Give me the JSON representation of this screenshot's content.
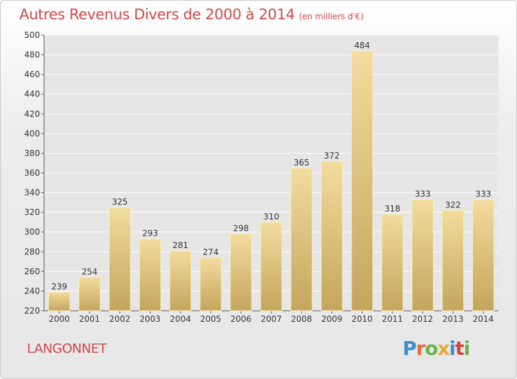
{
  "header": {
    "title": "Autres Revenus Divers de 2000 à 2014",
    "subtitle": "(en milliers d'€)"
  },
  "footer": {
    "commune": "LANGONNET",
    "logo": [
      "P",
      "r",
      "o",
      "x",
      "i",
      "t",
      "i"
    ],
    "logo_colors": [
      "#3a8fd0",
      "#e46b3a",
      "#6ab34a",
      "#e8a93a",
      "#3a8fd0",
      "#d0473a",
      "#6ab34a"
    ]
  },
  "chart_data": {
    "type": "bar",
    "title": "Autres Revenus Divers de 2000 à 2014",
    "subtitle": "(en milliers d'€)",
    "xlabel": "",
    "ylabel": "",
    "categories": [
      "2000",
      "2001",
      "2002",
      "2003",
      "2004",
      "2005",
      "2006",
      "2007",
      "2008",
      "2009",
      "2010",
      "2011",
      "2012",
      "2013",
      "2014"
    ],
    "values": [
      239,
      254,
      325,
      293,
      281,
      274,
      298,
      310,
      365,
      372,
      484,
      318,
      333,
      322,
      333
    ],
    "ylim": [
      220,
      500
    ],
    "yticks": [
      220,
      240,
      260,
      280,
      300,
      320,
      340,
      360,
      380,
      400,
      420,
      440,
      460,
      480,
      500
    ],
    "grid": true,
    "bar_color_top": "#f2dc9e",
    "bar_color_bottom": "#c4a55c"
  }
}
